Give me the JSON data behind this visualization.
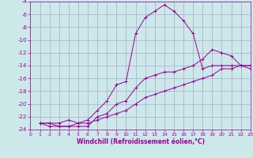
{
  "background_color": "#cce8e8",
  "grid_color": "#aaaacc",
  "line_color": "#990099",
  "marker": "+",
  "xlabel": "Windchill (Refroidissement éolien,°C)",
  "xlim": [
    0,
    23
  ],
  "ylim": [
    -24,
    -4
  ],
  "xticks": [
    0,
    1,
    2,
    3,
    4,
    5,
    6,
    7,
    8,
    9,
    10,
    11,
    12,
    13,
    14,
    15,
    16,
    17,
    18,
    19,
    20,
    21,
    22,
    23
  ],
  "yticks": [
    -24,
    -22,
    -20,
    -18,
    -16,
    -14,
    -12,
    -10,
    -8,
    -6,
    -4
  ],
  "lines": [
    {
      "x": [
        1,
        2,
        3,
        4,
        5,
        6,
        7,
        8,
        9,
        10,
        11,
        12,
        13,
        14,
        15,
        16,
        17,
        18,
        19,
        20,
        21,
        22,
        23
      ],
      "y": [
        -23.0,
        -23.0,
        -23.0,
        -22.5,
        -23.0,
        -22.5,
        -21.0,
        -19.5,
        -17.0,
        -16.5,
        -9.0,
        -6.5,
        -5.5,
        -4.5,
        -5.5,
        -7.0,
        -9.0,
        -14.5,
        -14.0,
        -14.0,
        -14.0,
        -14.0,
        -14.0
      ]
    },
    {
      "x": [
        1,
        2,
        3,
        4,
        5,
        6,
        7,
        8,
        9,
        10,
        11,
        12,
        13,
        14,
        15,
        16,
        17,
        18,
        19,
        20,
        21,
        22,
        23
      ],
      "y": [
        -23.0,
        -23.5,
        -23.5,
        -23.5,
        -23.0,
        -23.0,
        -22.5,
        -22.0,
        -21.5,
        -21.0,
        -20.0,
        -19.0,
        -18.5,
        -18.0,
        -17.5,
        -17.0,
        -16.5,
        -16.0,
        -15.5,
        -14.5,
        -14.5,
        -14.0,
        -14.0
      ]
    },
    {
      "x": [
        1,
        2,
        3,
        4,
        5,
        6,
        7,
        8,
        9,
        10,
        11,
        12,
        13,
        14,
        15,
        16,
        17,
        18,
        19,
        20,
        21,
        22,
        23
      ],
      "y": [
        -23.0,
        -23.0,
        -23.5,
        -23.5,
        -23.5,
        -23.5,
        -22.0,
        -21.5,
        -20.0,
        -19.5,
        -17.5,
        -16.0,
        -15.5,
        -15.0,
        -15.0,
        -14.5,
        -14.0,
        -13.0,
        -11.5,
        -12.0,
        -12.5,
        -14.0,
        -14.5
      ]
    }
  ]
}
